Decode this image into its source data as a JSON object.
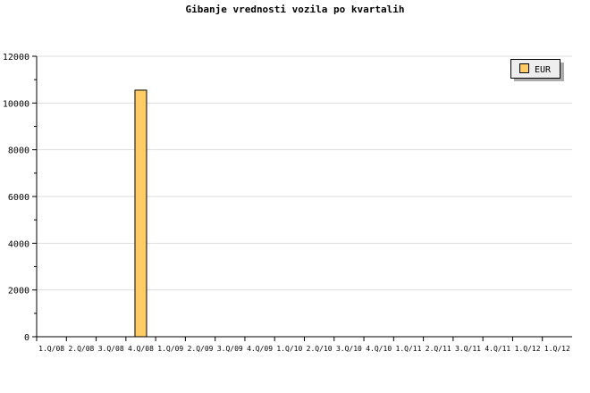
{
  "chart_data": {
    "type": "bar",
    "title": "Gibanje vrednosti vozila po kvartalih",
    "categories": [
      "1.Q/08",
      "2.Q/08",
      "3.Q/08",
      "4.Q/08",
      "1.Q/09",
      "2.Q/09",
      "3.Q/09",
      "4.Q/09",
      "1.Q/10",
      "2.Q/10",
      "3.Q/10",
      "4.Q/10",
      "1.Q/11",
      "2.Q/11",
      "3.Q/11",
      "4.Q/11",
      "1.Q/12",
      "1.Q/12"
    ],
    "series": [
      {
        "name": "EUR",
        "values": [
          0,
          0,
          0,
          10550,
          0,
          0,
          0,
          0,
          0,
          0,
          0,
          0,
          0,
          0,
          0,
          0,
          0,
          0
        ],
        "color": "#ffcc66"
      }
    ],
    "ylim": [
      0,
      12000
    ],
    "yticks": [
      0,
      2000,
      4000,
      6000,
      8000,
      10000,
      12000
    ],
    "grid": true,
    "legend": "top-right"
  }
}
